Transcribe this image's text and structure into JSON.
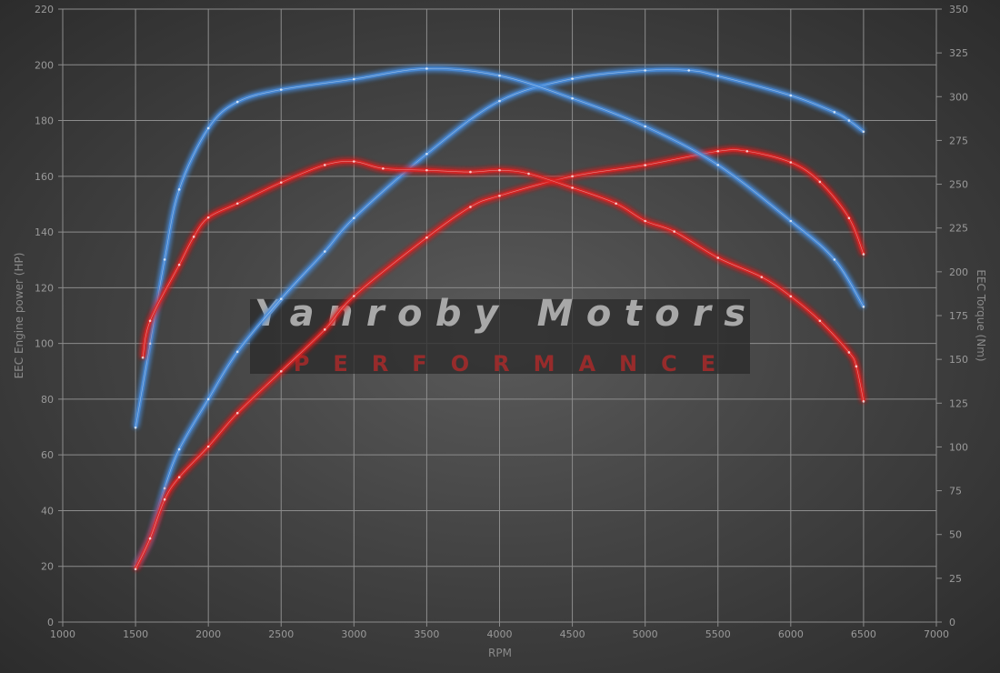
{
  "chart_data": {
    "type": "line",
    "title": "",
    "xlabel": "RPM",
    "ylabel": "EEC Engine power (HP)",
    "y2label": "EEC Torque (Nm)",
    "xlim": [
      1000,
      7000
    ],
    "ylim": [
      0,
      220
    ],
    "y2lim": [
      0,
      350
    ],
    "xticks": [
      1000,
      1500,
      2000,
      2500,
      3000,
      3500,
      4000,
      4500,
      5000,
      5500,
      6000,
      6500,
      7000
    ],
    "yticks": [
      0,
      20,
      40,
      60,
      80,
      100,
      120,
      140,
      160,
      180,
      200,
      220
    ],
    "y2ticks": [
      0,
      25,
      50,
      75,
      100,
      125,
      150,
      175,
      200,
      225,
      250,
      275,
      300,
      325,
      350
    ],
    "grid": true,
    "legend": "none",
    "watermark": {
      "line1": "Yanroby Motors",
      "line2": "PERFORMANCE"
    },
    "series": [
      {
        "axis": "left",
        "color": "#4a8fe0",
        "x": [
          1500,
          1600,
          1700,
          1800,
          2000,
          2200,
          2500,
          2800,
          3000,
          3500,
          4000,
          4500,
          5000,
          5300,
          5500,
          6000,
          6300,
          6400,
          6500
        ],
        "y": [
          20,
          30,
          48,
          62,
          80,
          97,
          116,
          133,
          145,
          168,
          187,
          195,
          198,
          198,
          196,
          189,
          183,
          180,
          176
        ]
      },
      {
        "axis": "left",
        "color": "#e02020",
        "x": [
          1500,
          1600,
          1700,
          1800,
          2000,
          2200,
          2500,
          2800,
          3000,
          3500,
          3800,
          4000,
          4500,
          5000,
          5500,
          5700,
          6000,
          6200,
          6400,
          6500
        ],
        "y": [
          19,
          30,
          44,
          52,
          63,
          75,
          90,
          105,
          117,
          138,
          149,
          153,
          160,
          164,
          169,
          169,
          165,
          158,
          145,
          132
        ]
      },
      {
        "axis": "right",
        "color": "#4a8fe0",
        "x": [
          1500,
          1600,
          1700,
          1800,
          2000,
          2200,
          2500,
          3000,
          3500,
          4000,
          4500,
          5000,
          5500,
          6000,
          6300,
          6500
        ],
        "y": [
          111,
          159,
          207,
          247,
          282,
          297,
          304,
          310,
          316,
          312,
          299,
          283,
          261,
          229,
          207,
          180
        ]
      },
      {
        "axis": "right",
        "color": "#e02020",
        "x": [
          1550,
          1600,
          1800,
          1900,
          2000,
          2200,
          2500,
          2800,
          3000,
          3200,
          3500,
          3800,
          4000,
          4200,
          4500,
          4800,
          5000,
          5200,
          5500,
          5800,
          6000,
          6200,
          6400,
          6450,
          6500
        ],
        "y": [
          151,
          172,
          204,
          220,
          231,
          239,
          251,
          261,
          263,
          259,
          258,
          257,
          258,
          256,
          248,
          239,
          229,
          223,
          208,
          197,
          186,
          172,
          154,
          146,
          126
        ]
      }
    ]
  }
}
